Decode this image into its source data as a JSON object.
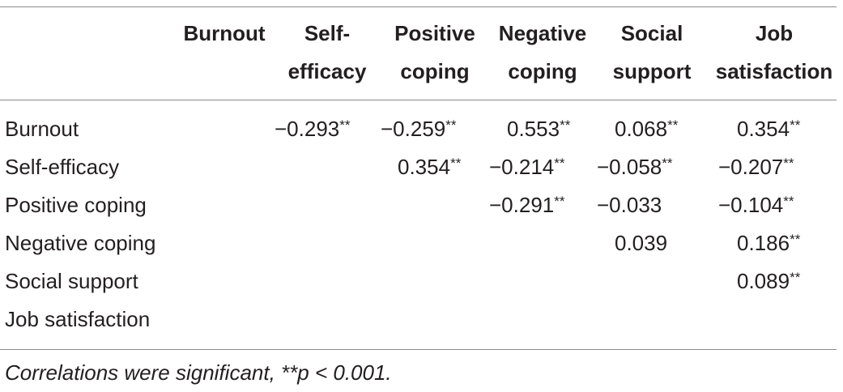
{
  "table": {
    "columns": [
      {
        "line1": "",
        "line2": "Burnout"
      },
      {
        "line1": "Self-",
        "line2": "efficacy"
      },
      {
        "line1": "Positive",
        "line2": "coping"
      },
      {
        "line1": "Negative",
        "line2": "coping"
      },
      {
        "line1": "Social",
        "line2": "support"
      },
      {
        "line1": "Job",
        "line2": "satisfaction"
      }
    ],
    "rows": [
      {
        "label": "Burnout",
        "cells": [
          "",
          "−0.293",
          "−0.259",
          "0.553",
          "0.068",
          "0.354"
        ],
        "marks": [
          "",
          "**",
          "**",
          "**",
          "**",
          "**"
        ]
      },
      {
        "label": "Self-efficacy",
        "cells": [
          "",
          "",
          "0.354",
          "−0.214",
          "−0.058",
          "−0.207"
        ],
        "marks": [
          "",
          "",
          "**",
          "**",
          "**",
          "**"
        ]
      },
      {
        "label": "Positive coping",
        "cells": [
          "",
          "",
          "",
          "−0.291",
          "−0.033",
          "−0.104"
        ],
        "marks": [
          "",
          "",
          "",
          "**",
          "",
          "**"
        ]
      },
      {
        "label": "Negative coping",
        "cells": [
          "",
          "",
          "",
          "",
          "0.039",
          "0.186"
        ],
        "marks": [
          "",
          "",
          "",
          "",
          "",
          "**"
        ]
      },
      {
        "label": "Social support",
        "cells": [
          "",
          "",
          "",
          "",
          "",
          "0.089"
        ],
        "marks": [
          "",
          "",
          "",
          "",
          "",
          "**"
        ]
      },
      {
        "label": "Job satisfaction",
        "cells": [
          "",
          "",
          "",
          "",
          "",
          ""
        ],
        "marks": [
          "",
          "",
          "",
          "",
          "",
          ""
        ]
      }
    ]
  },
  "footnote": "Correlations were significant, **p < 0.001."
}
